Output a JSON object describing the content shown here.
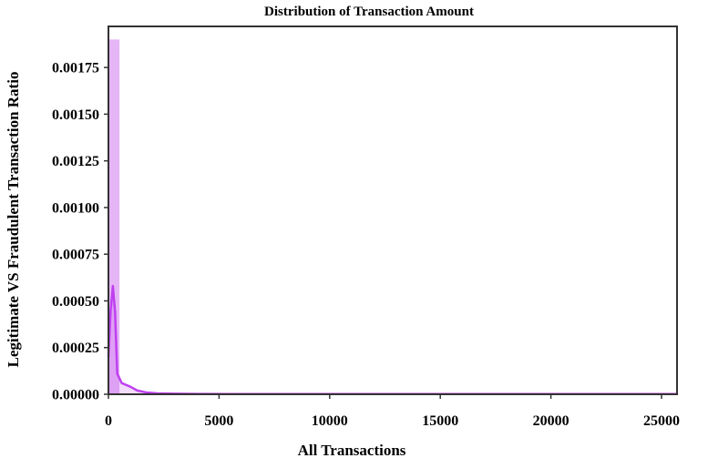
{
  "chart_data": {
    "type": "bar",
    "title": "Distribution of Transaction Amount",
    "xlabel": "All Transactions",
    "ylabel": "Legitimate VS Fraudulent Transaction Ratio",
    "xlim": [
      0,
      25700
    ],
    "ylim": [
      0,
      0.00197
    ],
    "x_ticks": [
      {
        "value": 0,
        "label": "0"
      },
      {
        "value": 5000,
        "label": "5000"
      },
      {
        "value": 10000,
        "label": "10000"
      },
      {
        "value": 15000,
        "label": "15000"
      },
      {
        "value": 20000,
        "label": "20000"
      },
      {
        "value": 25000,
        "label": "25000"
      }
    ],
    "y_ticks": [
      {
        "value": 0,
        "label": "0.00000"
      },
      {
        "value": 0.00025,
        "label": "0.00025"
      },
      {
        "value": 0.0005,
        "label": "0.00050"
      },
      {
        "value": 0.00075,
        "label": "0.00075"
      },
      {
        "value": 0.001,
        "label": "0.00100"
      },
      {
        "value": 0.00125,
        "label": "0.00125"
      },
      {
        "value": 0.0015,
        "label": "0.00150"
      },
      {
        "value": 0.00175,
        "label": "0.00175"
      }
    ],
    "histogram": {
      "bin_width": 500,
      "bins": [
        {
          "x0": 0,
          "x1": 500,
          "value": 0.0019
        }
      ],
      "color": "#e2a8f5"
    },
    "kde": {
      "color": "#bf40f0",
      "x": [
        0,
        100,
        200,
        300,
        400,
        600,
        800,
        1000,
        1300,
        1700,
        2200,
        3000,
        4000,
        6000,
        10000,
        15000,
        20000,
        25700
      ],
      "y": [
        0.0002,
        0.00045,
        0.00058,
        0.00044,
        0.00011,
        6e-05,
        5e-05,
        4e-05,
        2e-05,
        1e-05,
        5e-06,
        3e-06,
        2e-06,
        1e-06,
        1e-06,
        1e-06,
        1e-06,
        1e-06
      ]
    },
    "grid": false,
    "legend": "none",
    "frame_color": "#333333"
  }
}
